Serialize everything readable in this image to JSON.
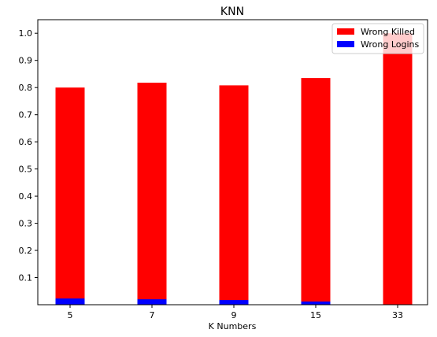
{
  "chart_data": {
    "type": "bar",
    "title": "KNN",
    "xlabel": "K Numbers",
    "ylabel": "",
    "categories": [
      "5",
      "7",
      "9",
      "15",
      "33"
    ],
    "series": [
      {
        "name": "Wrong Killed",
        "color": "#ff0000",
        "values": [
          0.8,
          0.818,
          0.808,
          0.835,
          1.0
        ]
      },
      {
        "name": "Wrong Logins",
        "color": "#0000ff",
        "values": [
          0.023,
          0.02,
          0.017,
          0.012,
          0.0
        ]
      }
    ],
    "ylim": [
      0,
      1.05
    ],
    "yticks": [
      0.1,
      0.2,
      0.3,
      0.4,
      0.5,
      0.6,
      0.7,
      0.8,
      0.9,
      1.0
    ],
    "ytick_labels": [
      "0.1",
      "0.2",
      "0.3",
      "0.4",
      "0.5",
      "0.6",
      "0.7",
      "0.8",
      "0.9",
      "1.0"
    ],
    "grid": false,
    "legend_position": "top-right"
  }
}
